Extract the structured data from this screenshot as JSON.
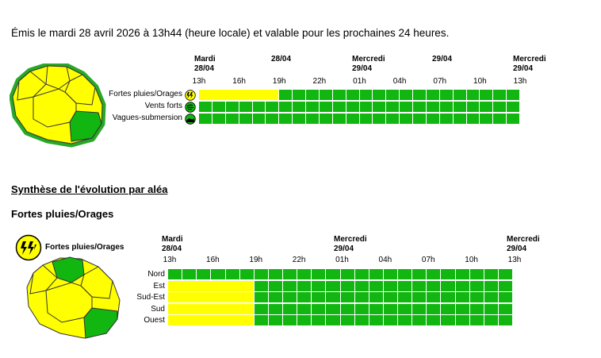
{
  "header": {
    "emission_text": "Émis le mardi 28 avril 2026 à 13h44 (heure locale) et valable pour les prochaines 24 heures."
  },
  "colors": {
    "green": "#11b611",
    "yellow": "#ffff00",
    "map_border": "#28a828"
  },
  "overview": {
    "day_labels": [
      {
        "day": "Mardi",
        "date": "28/04"
      },
      {
        "day": "",
        "date": "28/04"
      },
      {
        "day": "Mercredi",
        "date": "29/04"
      },
      {
        "day": "",
        "date": "29/04"
      },
      {
        "day": "Mercredi",
        "date": "29/04"
      }
    ],
    "ticks": [
      "13h",
      "16h",
      "19h",
      "22h",
      "01h",
      "04h",
      "07h",
      "10h",
      "13h"
    ],
    "rows": [
      {
        "label": "Fortes pluies/Orages",
        "icon": "lightning-rain-icon",
        "yellow_hours": 6
      },
      {
        "label": "Vents forts",
        "icon": "wind-icon",
        "yellow_hours": 0
      },
      {
        "label": "Vagues-submersion",
        "icon": "wave-icon",
        "yellow_hours": 0
      }
    ]
  },
  "synthese": {
    "title": "Synthèse de l'évolution par aléa",
    "hazard_title": "Fortes pluies/Orages",
    "legend_label": "Fortes pluies/Orages",
    "day_labels": [
      {
        "day": "Mardi",
        "date": "28/04"
      },
      {
        "day": "Mercredi",
        "date": "29/04"
      },
      {
        "day": "Mercredi",
        "date": "29/04"
      }
    ],
    "ticks": [
      "13h",
      "16h",
      "19h",
      "22h",
      "01h",
      "04h",
      "07h",
      "10h",
      "13h"
    ],
    "rows": [
      {
        "label": "Nord",
        "yellow_hours": 0
      },
      {
        "label": "Est",
        "yellow_hours": 6
      },
      {
        "label": "Sud-Est",
        "yellow_hours": 6
      },
      {
        "label": "Sud",
        "yellow_hours": 6
      },
      {
        "label": "Ouest",
        "yellow_hours": 6
      }
    ]
  }
}
